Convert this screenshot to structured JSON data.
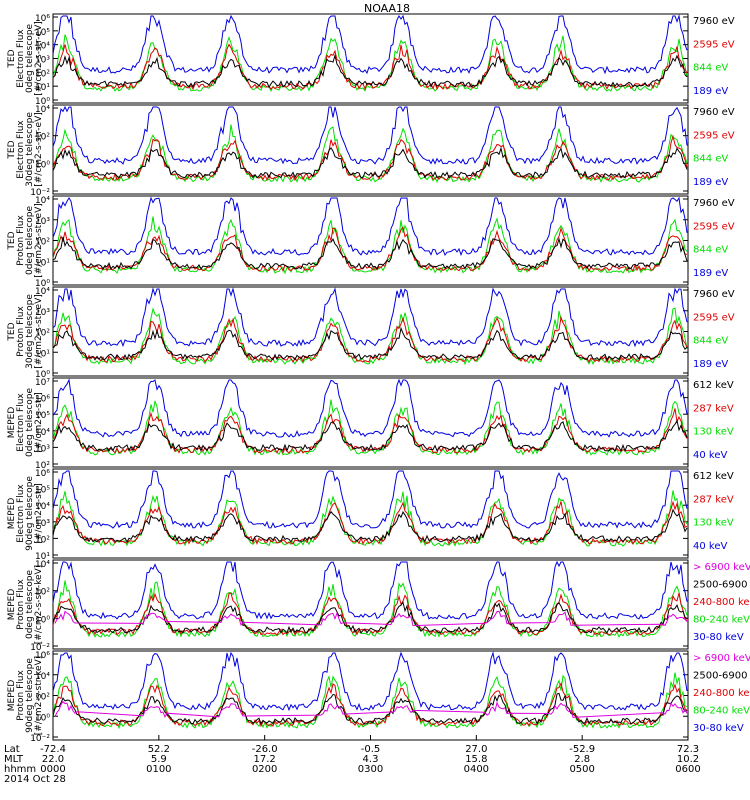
{
  "chart_data": {
    "type": "line",
    "title": "NOAA18",
    "x_range": [
      "0000",
      "0600"
    ],
    "colors": {
      "black": "#000000",
      "red": "#e00000",
      "green": "#00e000",
      "blue": "#0000e0",
      "magenta": "#e000e0"
    },
    "panels": [
      {
        "ylabel_lines": [
          "TED",
          "Electron Flux",
          "0deg telescope",
          "[#/cm2-s-str-eV]"
        ],
        "y_ticks": [
          "10⁶",
          "10⁵",
          "10⁴",
          "10³",
          "10²",
          "10¹",
          "10⁰"
        ],
        "channels": [
          {
            "label": "7960 eV",
            "color": "black"
          },
          {
            "label": "2595 eV",
            "color": "red"
          },
          {
            "label": "844 eV",
            "color": "green"
          },
          {
            "label": "189 eV",
            "color": "blue"
          }
        ]
      },
      {
        "ylabel_lines": [
          "TED",
          "Electron Flux",
          "30deg telescope",
          "[#/cm2-s-str-eV]"
        ],
        "y_ticks": [
          "10⁴",
          "10²",
          "10⁰",
          "10⁻²"
        ],
        "channels": [
          {
            "label": "7960 eV",
            "color": "black"
          },
          {
            "label": "2595 eV",
            "color": "red"
          },
          {
            "label": "844 eV",
            "color": "green"
          },
          {
            "label": "189 eV",
            "color": "blue"
          }
        ]
      },
      {
        "ylabel_lines": [
          "TED",
          "Proton Flux",
          "0deg telescope",
          "[#/cm2-s-str-eV]"
        ],
        "y_ticks": [
          "10⁴",
          "10³",
          "10²",
          "10¹",
          "10⁰"
        ],
        "channels": [
          {
            "label": "7960 eV",
            "color": "black"
          },
          {
            "label": "2595 eV",
            "color": "red"
          },
          {
            "label": "844 eV",
            "color": "green"
          },
          {
            "label": "189 eV",
            "color": "blue"
          }
        ]
      },
      {
        "ylabel_lines": [
          "TED",
          "Proton Flux",
          "30deg telescope",
          "[#/cm2-s-str-eV]"
        ],
        "y_ticks": [
          "10⁴",
          "10³",
          "10²",
          "10¹",
          "10⁰"
        ],
        "channels": [
          {
            "label": "7960 eV",
            "color": "black"
          },
          {
            "label": "2595 eV",
            "color": "red"
          },
          {
            "label": "844 eV",
            "color": "green"
          },
          {
            "label": "189 eV",
            "color": "blue"
          }
        ]
      },
      {
        "ylabel_lines": [
          "MEPED",
          "Electron Flux",
          "0deg telescope",
          "[#/cm2-s-str]"
        ],
        "y_ticks": [
          "10⁷",
          "10⁶",
          "10⁵",
          "10⁴",
          "10³",
          "10²"
        ],
        "channels": [
          {
            "label": "612 keV",
            "color": "black"
          },
          {
            "label": "287 keV",
            "color": "red"
          },
          {
            "label": "130 keV",
            "color": "green"
          },
          {
            "label": "40 keV",
            "color": "blue"
          }
        ]
      },
      {
        "ylabel_lines": [
          "MEPED",
          "Electron Flux",
          "90deg telescope",
          "[#/cm2-s-str]"
        ],
        "y_ticks": [
          "10⁶",
          "10⁵",
          "10⁴",
          "10³",
          "10²",
          "10¹"
        ],
        "channels": [
          {
            "label": "612 keV",
            "color": "black"
          },
          {
            "label": "287 keV",
            "color": "red"
          },
          {
            "label": "130 keV",
            "color": "green"
          },
          {
            "label": "40 keV",
            "color": "blue"
          }
        ]
      },
      {
        "ylabel_lines": [
          "MEPED",
          "Proton Flux",
          "0deg telescope",
          "[#/cm2-s-str-keV]"
        ],
        "y_ticks": [
          "10⁴",
          "10²",
          "10⁰",
          "10⁻²"
        ],
        "channels": [
          {
            "label": "> 6900 keV",
            "color": "magenta"
          },
          {
            "label": "2500-6900",
            "color": "black"
          },
          {
            "label": "240-800 ke",
            "color": "red"
          },
          {
            "label": "80-240 keV",
            "color": "green"
          },
          {
            "label": "30-80 keV",
            "color": "blue"
          }
        ]
      },
      {
        "ylabel_lines": [
          "MEPED",
          "Proton Flux",
          "90deg telescope",
          "[#/cm2-s-str-keV]"
        ],
        "y_ticks": [
          "10⁶",
          "10⁴",
          "10²",
          "10⁰",
          "10⁻²"
        ],
        "channels": [
          {
            "label": "> 6900 keV",
            "color": "magenta"
          },
          {
            "label": "2500-6900",
            "color": "black"
          },
          {
            "label": "240-800 ke",
            "color": "red"
          },
          {
            "label": "80-240 keV",
            "color": "green"
          },
          {
            "label": "30-80 keV",
            "color": "blue"
          }
        ]
      }
    ],
    "x_axis": {
      "row_labels": [
        "Lat",
        "MLT",
        "hhmm"
      ],
      "ticks": [
        {
          "lat": "-72.4",
          "mlt": "22.0",
          "hhmm": "0000"
        },
        {
          "lat": "52.2",
          "mlt": "5.9",
          "hhmm": "0100"
        },
        {
          "lat": "-26.0",
          "mlt": "17.2",
          "hhmm": "0200"
        },
        {
          "lat": "-0.5",
          "mlt": "4.3",
          "hhmm": "0300"
        },
        {
          "lat": "27.0",
          "mlt": "15.8",
          "hhmm": "0400"
        },
        {
          "lat": "-52.9",
          "mlt": "2.8",
          "hhmm": "0500"
        },
        {
          "lat": "72.3",
          "mlt": "10.2",
          "hhmm": "0600"
        }
      ],
      "date": "2014 Oct 28"
    }
  }
}
